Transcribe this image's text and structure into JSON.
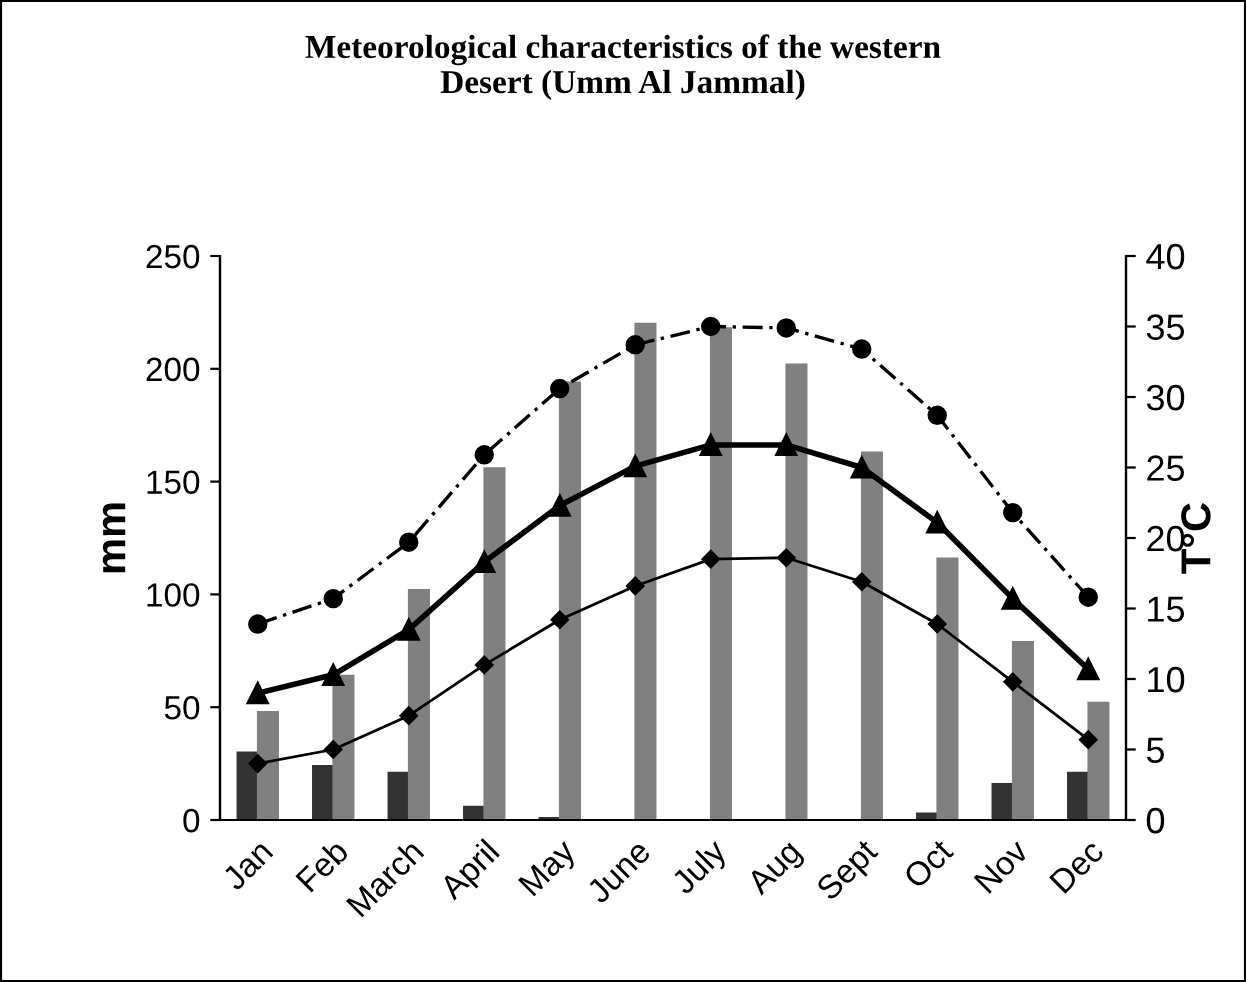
{
  "chart_data": {
    "type": "bar",
    "title": "Meteorological characteristics of the western\nDesert (Umm Al Jammal)",
    "ylabel": "mm",
    "y2label": "T°C",
    "categories": [
      "Jan",
      "Feb",
      "March",
      "April",
      "May",
      "June",
      "July",
      "Aug",
      "Sept",
      "Oct",
      "Nov",
      "Dec"
    ],
    "series": [
      {
        "color": "#333333",
        "values": [
          30,
          24,
          21,
          6,
          1,
          0,
          0,
          0,
          0,
          3,
          16,
          21
        ]
      },
      {
        "color": "#808080",
        "values": [
          48,
          64,
          102,
          156,
          194,
          220,
          218,
          202,
          163,
          116,
          79,
          52
        ]
      },
      {
        "type": "line",
        "axis": "y2",
        "color": "#000000",
        "marker": "circle",
        "line_style": "dashed",
        "values": [
          13.9,
          15.7,
          19.7,
          25.9,
          30.6,
          33.7,
          35.0,
          34.9,
          33.4,
          28.7,
          21.8,
          15.8
        ]
      },
      {
        "type": "line",
        "axis": "y2",
        "color": "#000000",
        "marker": "triangle",
        "line_style": "solid",
        "values": [
          9.0,
          10.3,
          13.5,
          18.3,
          22.3,
          25.1,
          26.6,
          26.6,
          25.0,
          21.1,
          15.7,
          10.7
        ]
      },
      {
        "type": "line",
        "axis": "y2",
        "color": "#000000",
        "marker": "diamond",
        "line_style": "solid",
        "values": [
          4.0,
          5.0,
          7.4,
          11.0,
          14.2,
          16.6,
          18.5,
          18.6,
          16.9,
          13.9,
          9.8,
          5.7
        ]
      }
    ],
    "ylim": [
      0,
      250
    ],
    "yticks": [
      0,
      50,
      100,
      150,
      200,
      250
    ],
    "y2lim": [
      0,
      40
    ],
    "y2ticks": [
      0,
      5,
      10,
      15,
      20,
      25,
      30,
      35,
      40
    ],
    "grid": false,
    "legend": false
  }
}
